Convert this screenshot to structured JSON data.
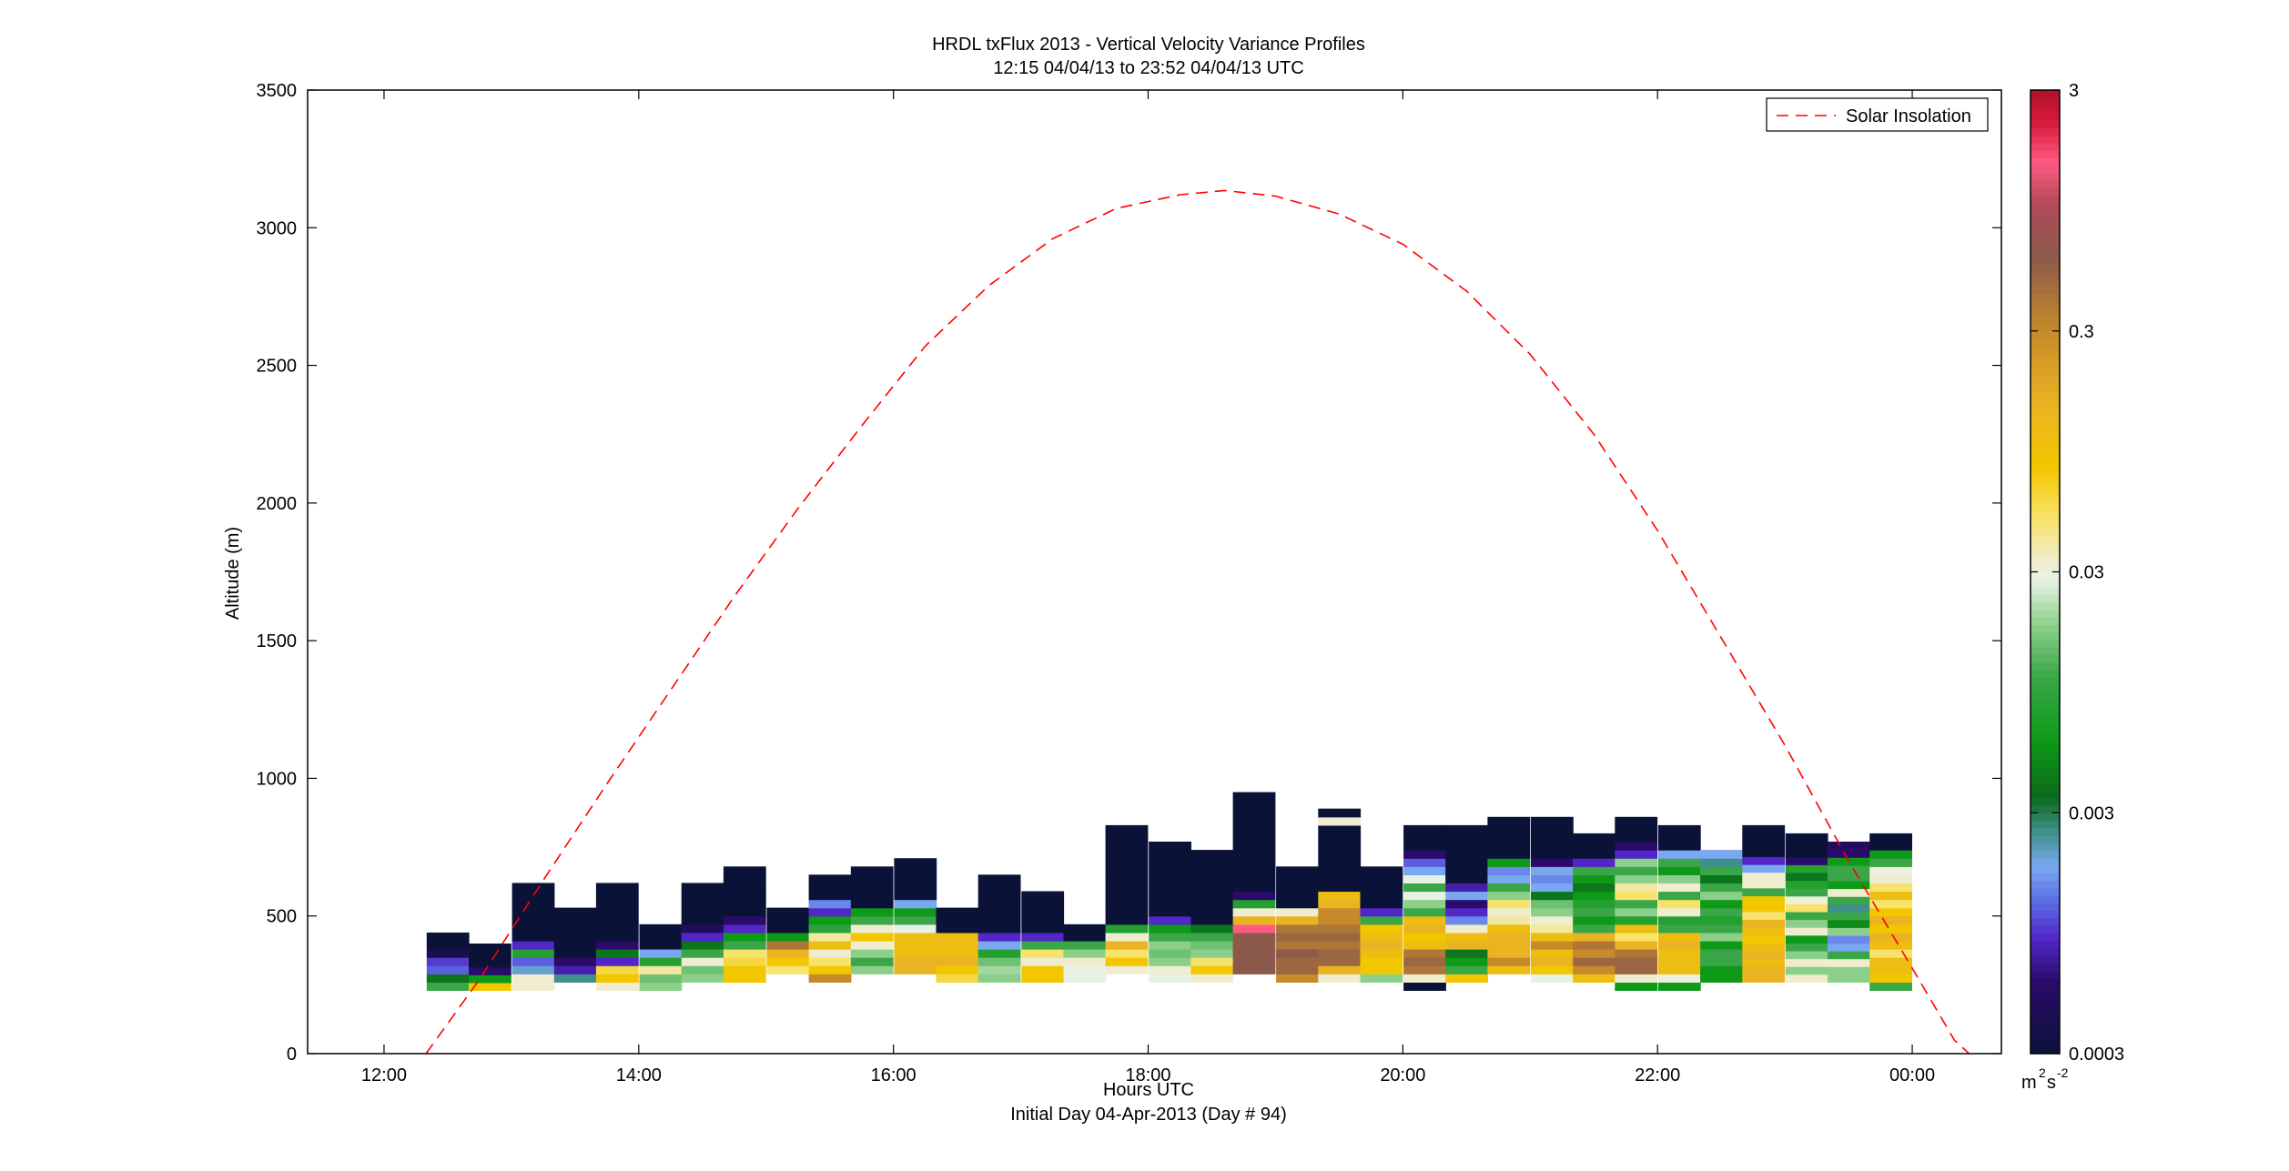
{
  "figure": {
    "title_line1": "HRDL txFlux 2013 - Vertical Velocity Variance Profiles",
    "title_line2": "12:15 04/04/13 to 23:52 04/04/13  UTC",
    "xlabel": "Hours UTC",
    "xlabel_sub": "Initial Day 04-Apr-2013 (Day # 94)",
    "ylabel": "Altitude (m)",
    "legend_label": "Solar Insolation",
    "colorbar_unit_base": "m",
    "colorbar_unit_exp1": "2",
    "colorbar_unit_mid": "s",
    "colorbar_unit_exp2": "-2"
  },
  "colors": {
    "background_none": "#ffffff",
    "solar_line": "#ff0000",
    "low_variance": "#0b1238"
  },
  "chart_data": {
    "type": "heatmap",
    "title": "HRDL txFlux 2013 - Vertical Velocity Variance Profiles",
    "subtitle": "12:15 04/04/13 to 23:52 04/04/13  UTC",
    "xlabel": "Hours UTC",
    "ylabel": "Altitude (m)",
    "xlim": [
      11.4,
      24.7
    ],
    "ylim": [
      0,
      3500
    ],
    "x_ticks": [
      12,
      14,
      16,
      18,
      20,
      22,
      24
    ],
    "x_tick_labels": [
      "12:00",
      "14:00",
      "16:00",
      "18:00",
      "20:00",
      "22:00",
      "00:00"
    ],
    "y_ticks": [
      0,
      500,
      1000,
      1500,
      2000,
      2500,
      3000,
      3500
    ],
    "y_tick_labels": [
      "0",
      "500",
      "1000",
      "1500",
      "2000",
      "2500",
      "3000",
      "3500"
    ],
    "colorbar": {
      "scale": "log",
      "range": [
        0.0003,
        3
      ],
      "tick_values": [
        0.0003,
        0.003,
        0.03,
        0.3,
        3
      ],
      "tick_labels": [
        "0.0003",
        "0.003",
        "0.03",
        "0.3",
        "3"
      ],
      "unit": "m^2 s^-2",
      "colormap": [
        {
          "v": 0.0003,
          "c": "#0b1238"
        },
        {
          "v": 0.0006,
          "c": "#2a0b6a"
        },
        {
          "v": 0.0009,
          "c": "#5226c7"
        },
        {
          "v": 0.0013,
          "c": "#5c6ee6"
        },
        {
          "v": 0.0018,
          "c": "#7aa8f0"
        },
        {
          "v": 0.0025,
          "c": "#3f8f8a"
        },
        {
          "v": 0.0035,
          "c": "#0c6a1d"
        },
        {
          "v": 0.006,
          "c": "#0e9a18"
        },
        {
          "v": 0.011,
          "c": "#3aa648"
        },
        {
          "v": 0.018,
          "c": "#8ccf8a"
        },
        {
          "v": 0.028,
          "c": "#e8f2e4"
        },
        {
          "v": 0.033,
          "c": "#f0ecd0"
        },
        {
          "v": 0.05,
          "c": "#f7e36b"
        },
        {
          "v": 0.08,
          "c": "#f3c700"
        },
        {
          "v": 0.15,
          "c": "#eab322"
        },
        {
          "v": 0.3,
          "c": "#c78a2a"
        },
        {
          "v": 0.6,
          "c": "#8b5a4a"
        },
        {
          "v": 1.0,
          "c": "#b04a58"
        },
        {
          "v": 1.5,
          "c": "#ff5a82"
        },
        {
          "v": 2.2,
          "c": "#d81b3c"
        },
        {
          "v": 3.0,
          "c": "#b0102a"
        }
      ]
    },
    "bin_width_hours": 0.33,
    "range_gate_m": 30,
    "profiles": [
      {
        "t": 12.5,
        "base": 230,
        "top": 440,
        "values": [
          0.011,
          0.004,
          0.0012,
          0.001,
          0.0004,
          0.0003,
          0.0003
        ]
      },
      {
        "t": 12.83,
        "base": 230,
        "top": 400,
        "values": [
          0.08,
          0.006,
          0.0006,
          0.0003,
          0.0003,
          0.0003
        ]
      },
      {
        "t": 13.17,
        "base": 230,
        "top": 620,
        "values": [
          0.033,
          0.033,
          0.002,
          0.0012,
          0.008,
          0.0009,
          0.0003,
          0.0003,
          0.0003,
          0.0003,
          0.0003,
          0.0003,
          0.0003
        ]
      },
      {
        "t": 13.5,
        "base": 260,
        "top": 530,
        "values": [
          0.0025,
          0.0008,
          0.0006,
          0.0003,
          0.0003,
          0.0003,
          0.0003,
          0.0003,
          0.0003
        ]
      },
      {
        "t": 13.83,
        "base": 230,
        "top": 620,
        "values": [
          0.033,
          0.08,
          0.06,
          0.0009,
          0.004,
          0.0006,
          0.0003,
          0.0003,
          0.0003,
          0.0003,
          0.0003,
          0.0003,
          0.0003
        ]
      },
      {
        "t": 14.17,
        "base": 230,
        "top": 470,
        "values": [
          0.018,
          0.015,
          0.04,
          0.008,
          0.0018,
          0.0003,
          0.0003,
          0.0003
        ]
      },
      {
        "t": 14.5,
        "base": 260,
        "top": 620,
        "values": [
          0.018,
          0.015,
          0.033,
          0.011,
          0.004,
          0.0009,
          0.0005,
          0.0003,
          0.0003,
          0.0003,
          0.0003,
          0.0003
        ]
      },
      {
        "t": 14.83,
        "base": 260,
        "top": 680,
        "values": [
          0.08,
          0.08,
          0.06,
          0.05,
          0.011,
          0.006,
          0.0009,
          0.0006,
          0.0003,
          0.0003,
          0.0003,
          0.0003,
          0.0003,
          0.0003
        ]
      },
      {
        "t": 15.17,
        "base": 290,
        "top": 530,
        "values": [
          0.05,
          0.08,
          0.15,
          0.4,
          0.006,
          0.0003,
          0.0003,
          0.0003
        ]
      },
      {
        "t": 15.5,
        "base": 260,
        "top": 650,
        "values": [
          0.3,
          0.08,
          0.05,
          0.033,
          0.11,
          0.04,
          0.009,
          0.006,
          0.0009,
          0.0015,
          0.0003,
          0.0003,
          0.0003
        ]
      },
      {
        "t": 15.83,
        "base": 290,
        "top": 680,
        "values": [
          0.018,
          0.011,
          0.018,
          0.033,
          0.08,
          0.033,
          0.011,
          0.006,
          0.0003,
          0.0003,
          0.0003,
          0.0003,
          0.0003
        ]
      },
      {
        "t": 16.17,
        "base": 290,
        "top": 710,
        "values": [
          0.15,
          0.15,
          0.11,
          0.11,
          0.11,
          0.028,
          0.011,
          0.006,
          0.0018,
          0.0003,
          0.0003,
          0.0003,
          0.0003,
          0.0003
        ]
      },
      {
        "t": 16.5,
        "base": 260,
        "top": 530,
        "values": [
          0.06,
          0.08,
          0.15,
          0.11,
          0.11,
          0.11,
          0.0003,
          0.0003,
          0.0003
        ]
      },
      {
        "t": 16.83,
        "base": 260,
        "top": 650,
        "values": [
          0.018,
          0.02,
          0.015,
          0.008,
          0.0018,
          0.0009,
          0.0003,
          0.0003,
          0.0003,
          0.0003,
          0.0003,
          0.0003,
          0.0003
        ]
      },
      {
        "t": 17.17,
        "base": 260,
        "top": 590,
        "values": [
          0.08,
          0.08,
          0.033,
          0.05,
          0.011,
          0.0009,
          0.0003,
          0.0003,
          0.0003,
          0.0003,
          0.0003
        ]
      },
      {
        "t": 17.5,
        "base": 260,
        "top": 470,
        "values": [
          0.028,
          0.028,
          0.033,
          0.018,
          0.011,
          0.0003,
          0.0003
        ]
      },
      {
        "t": 17.83,
        "base": 290,
        "top": 830,
        "values": [
          0.033,
          0.08,
          0.05,
          0.15,
          0.033,
          0.008,
          0.0003,
          0.0003,
          0.0003,
          0.0003,
          0.0003,
          0.0003,
          0.0003,
          0.0003,
          0.0003,
          0.0003,
          0.0003,
          0.0003
        ]
      },
      {
        "t": 18.17,
        "base": 260,
        "top": 770,
        "values": [
          0.028,
          0.033,
          0.018,
          0.015,
          0.018,
          0.011,
          0.006,
          0.0009,
          0.0003,
          0.0003,
          0.0003,
          0.0003,
          0.0003,
          0.0003,
          0.0003,
          0.0003,
          0.0003
        ]
      },
      {
        "t": 18.5,
        "base": 260,
        "top": 740,
        "values": [
          0.033,
          0.08,
          0.05,
          0.018,
          0.015,
          0.011,
          0.004,
          0.0003,
          0.0003,
          0.0003,
          0.0003,
          0.0003,
          0.0003,
          0.0003,
          0.0003,
          0.0003
        ]
      },
      {
        "t": 18.83,
        "base": 290,
        "top": 950,
        "values": [
          0.6,
          0.6,
          0.6,
          0.6,
          0.6,
          1.5,
          0.15,
          0.033,
          0.008,
          0.0006,
          0.0003,
          0.0003,
          0.0003,
          0.0003,
          0.0003,
          0.0003,
          0.0003,
          0.0003,
          0.0003,
          0.0003,
          0.0003,
          0.0003
        ]
      },
      {
        "t": 19.17,
        "base": 260,
        "top": 680,
        "values": [
          0.3,
          0.5,
          0.5,
          0.6,
          0.4,
          0.5,
          0.4,
          0.15,
          0.033,
          0.0003,
          0.0003,
          0.0003,
          0.0003,
          0.0003
        ]
      },
      {
        "t": 19.5,
        "base": 260,
        "top": 890,
        "values": [
          0.033,
          0.15,
          0.5,
          0.5,
          0.4,
          0.5,
          0.4,
          0.3,
          0.3,
          0.15,
          0.11,
          0.0003,
          0.0003,
          0.0003,
          0.0003,
          0.0003,
          0.0003,
          0.0003,
          0.0003,
          0.033,
          0.0003
        ]
      },
      {
        "t": 19.83,
        "base": 260,
        "top": 680,
        "values": [
          0.018,
          0.08,
          0.08,
          0.11,
          0.15,
          0.11,
          0.08,
          0.011,
          0.0009,
          0.0003,
          0.0003,
          0.0003,
          0.0003,
          0.0003
        ]
      },
      {
        "t": 20.17,
        "base": 230,
        "top": 830,
        "values": [
          0.0003,
          0.033,
          0.4,
          0.5,
          0.4,
          0.11,
          0.08,
          0.15,
          0.11,
          0.011,
          0.018,
          0.028,
          0.011,
          0.028,
          0.0018,
          0.0012,
          0.0006,
          0.0003,
          0.0003,
          0.0003
        ]
      },
      {
        "t": 20.5,
        "base": 260,
        "top": 830,
        "values": [
          0.08,
          0.011,
          0.006,
          0.004,
          0.15,
          0.11,
          0.033,
          0.0015,
          0.0009,
          0.0006,
          0.0018,
          0.0008,
          0.0003,
          0.0003,
          0.0003,
          0.0003,
          0.0003,
          0.0003,
          0.0003
        ]
      },
      {
        "t": 20.83,
        "base": 290,
        "top": 860,
        "values": [
          0.11,
          0.3,
          0.15,
          0.15,
          0.15,
          0.11,
          0.04,
          0.033,
          0.05,
          0.018,
          0.011,
          0.0018,
          0.0015,
          0.006,
          0.0003,
          0.0003,
          0.0003,
          0.0003,
          0.0003
        ]
      },
      {
        "t": 21.17,
        "base": 260,
        "top": 860,
        "values": [
          0.028,
          0.08,
          0.15,
          0.11,
          0.3,
          0.11,
          0.04,
          0.033,
          0.018,
          0.015,
          0.004,
          0.0018,
          0.0015,
          0.0018,
          0.0006,
          0.0003,
          0.0003,
          0.0003,
          0.0003,
          0.0003
        ]
      },
      {
        "t": 21.5,
        "base": 260,
        "top": 800,
        "values": [
          0.11,
          0.3,
          0.5,
          0.3,
          0.4,
          0.15,
          0.011,
          0.006,
          0.011,
          0.008,
          0.006,
          0.004,
          0.006,
          0.011,
          0.0009,
          0.0003,
          0.0003,
          0.0003
        ]
      },
      {
        "t": 21.83,
        "base": 230,
        "top": 860,
        "values": [
          0.006,
          0.033,
          0.5,
          0.5,
          0.4,
          0.15,
          0.05,
          0.11,
          0.008,
          0.018,
          0.011,
          0.05,
          0.04,
          0.018,
          0.011,
          0.018,
          0.0009,
          0.0006,
          0.0003,
          0.0003,
          0.0003
        ]
      },
      {
        "t": 22.17,
        "base": 230,
        "top": 830,
        "values": [
          0.006,
          0.03,
          0.11,
          0.11,
          0.11,
          0.15,
          0.11,
          0.011,
          0.008,
          0.033,
          0.05,
          0.011,
          0.033,
          0.018,
          0.006,
          0.011,
          0.0018,
          0.0003,
          0.0003,
          0.0003
        ]
      },
      {
        "t": 22.5,
        "base": 260,
        "top": 740,
        "values": [
          0.006,
          0.006,
          0.011,
          0.011,
          0.006,
          0.018,
          0.011,
          0.008,
          0.011,
          0.006,
          0.018,
          0.011,
          0.004,
          0.011,
          0.0025,
          0.0018
        ]
      },
      {
        "t": 22.83,
        "base": 260,
        "top": 830,
        "values": [
          0.15,
          0.15,
          0.11,
          0.15,
          0.11,
          0.08,
          0.11,
          0.15,
          0.05,
          0.08,
          0.08,
          0.011,
          0.033,
          0.033,
          0.0018,
          0.0009,
          0.0003,
          0.0003,
          0.0003,
          0.0003
        ]
      },
      {
        "t": 23.17,
        "base": 260,
        "top": 800,
        "values": [
          0.033,
          0.018,
          0.033,
          0.018,
          0.011,
          0.006,
          0.033,
          0.018,
          0.011,
          0.05,
          0.03,
          0.011,
          0.008,
          0.004,
          0.008,
          0.0006,
          0.0003,
          0.0003,
          0.0003
        ]
      },
      {
        "t": 23.5,
        "base": 260,
        "top": 770,
        "values": [
          0.018,
          0.018,
          0.033,
          0.011,
          0.0018,
          0.0015,
          0.018,
          0.005,
          0.011,
          0.0025,
          0.011,
          0.033,
          0.006,
          0.011,
          0.011,
          0.006,
          0.0006,
          0.0005
        ]
      },
      {
        "t": 23.83,
        "base": 230,
        "top": 800,
        "values": [
          0.011,
          0.08,
          0.11,
          0.11,
          0.05,
          0.11,
          0.15,
          0.08,
          0.15,
          0.08,
          0.05,
          0.11,
          0.05,
          0.033,
          0.03,
          0.011,
          0.006,
          0.0003,
          0.0003
        ]
      }
    ],
    "series": [
      {
        "name": "Solar Insolation",
        "style": "dashed",
        "color": "#ff0000",
        "x": [
          12.33,
          12.75,
          13.25,
          13.75,
          14.25,
          14.75,
          15.25,
          15.75,
          16.25,
          16.75,
          17.25,
          17.75,
          18.25,
          18.6,
          19.0,
          19.5,
          20.0,
          20.5,
          21.0,
          21.5,
          22.0,
          22.5,
          23.0,
          23.5,
          24.0,
          24.33,
          24.68
        ],
        "y": [
          0,
          270,
          630,
          980,
          1320,
          1660,
          1980,
          2280,
          2570,
          2790,
          2960,
          3070,
          3120,
          3135,
          3115,
          3050,
          2940,
          2770,
          2540,
          2250,
          1900,
          1510,
          1120,
          700,
          310,
          50,
          -100
        ]
      }
    ],
    "legend_position": "top-right",
    "grid": false
  }
}
